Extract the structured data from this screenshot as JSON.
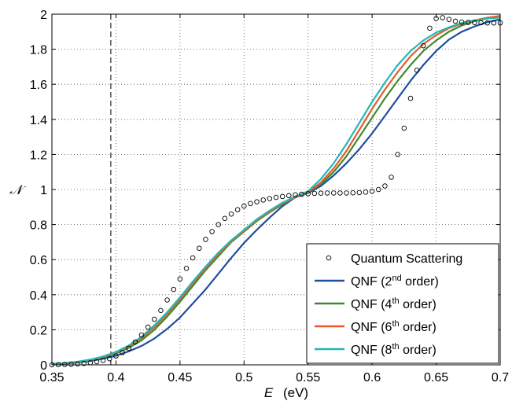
{
  "chart_data": {
    "type": "line",
    "xlabel_italic": "E",
    "xlabel_unit": "(eV)",
    "ylabel": "𝒩",
    "xlim": [
      0.35,
      0.7
    ],
    "ylim": [
      0,
      2
    ],
    "x_ticks": [
      "0.35",
      "0.4",
      "0.45",
      "0.5",
      "0.55",
      "0.6",
      "0.65",
      "0.7"
    ],
    "y_ticks": [
      "0",
      "0.2",
      "0.4",
      "0.6",
      "0.8",
      "1",
      "1.2",
      "1.4",
      "1.6",
      "1.8",
      "2"
    ],
    "grid": "dotted",
    "legend_position": "bottom-right",
    "reference_line_x": 0.396,
    "legend": [
      {
        "prefix": "Quantum Scattering",
        "sup": "",
        "suffix": "",
        "color": "#000000",
        "marker": "circle"
      },
      {
        "prefix": "QNF (2",
        "sup": "nd",
        "suffix": " order)",
        "color": "#1f4e9c",
        "marker": "line"
      },
      {
        "prefix": "QNF (4",
        "sup": "th",
        "suffix": " order)",
        "color": "#3d8a2e",
        "marker": "line"
      },
      {
        "prefix": "QNF (6",
        "sup": "th",
        "suffix": " order)",
        "color": "#e85a2a",
        "marker": "line"
      },
      {
        "prefix": "QNF (8",
        "sup": "th",
        "suffix": " order)",
        "color": "#22b8b8",
        "marker": "line"
      }
    ],
    "series": [
      {
        "name": "QNF (2nd order)",
        "color": "#1f4e9c",
        "x": [
          0.35,
          0.36,
          0.37,
          0.38,
          0.39,
          0.4,
          0.41,
          0.42,
          0.43,
          0.44,
          0.45,
          0.46,
          0.47,
          0.48,
          0.49,
          0.5,
          0.51,
          0.52,
          0.53,
          0.54,
          0.55,
          0.56,
          0.57,
          0.58,
          0.59,
          0.6,
          0.61,
          0.62,
          0.63,
          0.64,
          0.65,
          0.66,
          0.67,
          0.68,
          0.69,
          0.7
        ],
        "y": [
          0.005,
          0.008,
          0.013,
          0.022,
          0.035,
          0.052,
          0.077,
          0.108,
          0.15,
          0.205,
          0.27,
          0.35,
          0.43,
          0.52,
          0.61,
          0.695,
          0.77,
          0.84,
          0.905,
          0.955,
          0.98,
          1.02,
          1.08,
          1.15,
          1.23,
          1.32,
          1.42,
          1.52,
          1.62,
          1.71,
          1.79,
          1.855,
          1.9,
          1.93,
          1.955,
          1.97
        ]
      },
      {
        "name": "QNF (4th order)",
        "color": "#3d8a2e",
        "x": [
          0.35,
          0.36,
          0.37,
          0.38,
          0.39,
          0.4,
          0.41,
          0.42,
          0.43,
          0.44,
          0.45,
          0.46,
          0.47,
          0.48,
          0.49,
          0.5,
          0.51,
          0.52,
          0.53,
          0.54,
          0.55,
          0.56,
          0.57,
          0.58,
          0.59,
          0.6,
          0.61,
          0.62,
          0.63,
          0.64,
          0.65,
          0.66,
          0.67,
          0.68,
          0.69,
          0.7
        ],
        "y": [
          0.005,
          0.009,
          0.015,
          0.026,
          0.042,
          0.065,
          0.097,
          0.14,
          0.2,
          0.275,
          0.36,
          0.45,
          0.54,
          0.62,
          0.7,
          0.76,
          0.82,
          0.87,
          0.915,
          0.955,
          0.985,
          1.03,
          1.1,
          1.19,
          1.3,
          1.41,
          1.52,
          1.62,
          1.71,
          1.79,
          1.85,
          1.9,
          1.935,
          1.96,
          1.975,
          1.99
        ]
      },
      {
        "name": "QNF (6th order)",
        "color": "#e85a2a",
        "x": [
          0.35,
          0.36,
          0.37,
          0.38,
          0.39,
          0.4,
          0.41,
          0.42,
          0.43,
          0.44,
          0.45,
          0.46,
          0.47,
          0.48,
          0.49,
          0.5,
          0.51,
          0.52,
          0.53,
          0.54,
          0.55,
          0.56,
          0.57,
          0.58,
          0.59,
          0.6,
          0.61,
          0.62,
          0.63,
          0.64,
          0.65,
          0.66,
          0.67,
          0.68,
          0.69,
          0.7
        ],
        "y": [
          0.005,
          0.009,
          0.016,
          0.028,
          0.045,
          0.07,
          0.105,
          0.152,
          0.215,
          0.29,
          0.375,
          0.465,
          0.55,
          0.63,
          0.705,
          0.765,
          0.825,
          0.875,
          0.92,
          0.955,
          0.985,
          1.04,
          1.12,
          1.22,
          1.34,
          1.46,
          1.57,
          1.67,
          1.76,
          1.83,
          1.88,
          1.92,
          1.945,
          1.965,
          1.98,
          1.99
        ]
      },
      {
        "name": "QNF (8th order)",
        "color": "#22b8b8",
        "x": [
          0.35,
          0.36,
          0.37,
          0.38,
          0.39,
          0.4,
          0.41,
          0.42,
          0.43,
          0.44,
          0.45,
          0.46,
          0.47,
          0.48,
          0.49,
          0.5,
          0.51,
          0.52,
          0.53,
          0.54,
          0.55,
          0.56,
          0.57,
          0.58,
          0.59,
          0.6,
          0.61,
          0.62,
          0.63,
          0.64,
          0.65,
          0.66,
          0.67,
          0.68,
          0.69,
          0.7
        ],
        "y": [
          0.006,
          0.01,
          0.018,
          0.03,
          0.048,
          0.074,
          0.11,
          0.16,
          0.225,
          0.3,
          0.385,
          0.475,
          0.56,
          0.64,
          0.71,
          0.77,
          0.83,
          0.88,
          0.925,
          0.96,
          0.99,
          1.06,
          1.15,
          1.26,
          1.38,
          1.5,
          1.61,
          1.71,
          1.79,
          1.85,
          1.895,
          1.925,
          1.95,
          1.965,
          1.975,
          1.98
        ]
      },
      {
        "name": "Quantum Scattering",
        "color": "#000000",
        "marker": "circle",
        "x": [
          0.35,
          0.355,
          0.36,
          0.365,
          0.37,
          0.375,
          0.38,
          0.385,
          0.39,
          0.395,
          0.4,
          0.405,
          0.41,
          0.415,
          0.42,
          0.425,
          0.43,
          0.435,
          0.44,
          0.445,
          0.45,
          0.455,
          0.46,
          0.465,
          0.47,
          0.475,
          0.48,
          0.485,
          0.49,
          0.495,
          0.5,
          0.505,
          0.51,
          0.515,
          0.52,
          0.525,
          0.53,
          0.535,
          0.54,
          0.545,
          0.55,
          0.555,
          0.56,
          0.565,
          0.57,
          0.575,
          0.58,
          0.585,
          0.59,
          0.595,
          0.6,
          0.605,
          0.61,
          0.615,
          0.62,
          0.625,
          0.63,
          0.635,
          0.64,
          0.645,
          0.65,
          0.655,
          0.66,
          0.665,
          0.67,
          0.675,
          0.68,
          0.685,
          0.69,
          0.695,
          0.7
        ],
        "y": [
          0.0,
          0.001,
          0.002,
          0.003,
          0.005,
          0.008,
          0.012,
          0.018,
          0.025,
          0.035,
          0.05,
          0.07,
          0.095,
          0.13,
          0.17,
          0.215,
          0.26,
          0.31,
          0.37,
          0.43,
          0.49,
          0.55,
          0.61,
          0.665,
          0.715,
          0.76,
          0.8,
          0.835,
          0.86,
          0.885,
          0.905,
          0.92,
          0.93,
          0.94,
          0.948,
          0.955,
          0.96,
          0.965,
          0.97,
          0.973,
          0.976,
          0.978,
          0.979,
          0.98,
          0.98,
          0.98,
          0.98,
          0.981,
          0.982,
          0.985,
          0.99,
          1.0,
          1.02,
          1.07,
          1.2,
          1.35,
          1.52,
          1.68,
          1.82,
          1.92,
          1.975,
          1.98,
          1.97,
          1.96,
          1.955,
          1.953,
          1.952,
          1.951,
          1.95,
          1.95,
          1.95
        ]
      }
    ]
  }
}
